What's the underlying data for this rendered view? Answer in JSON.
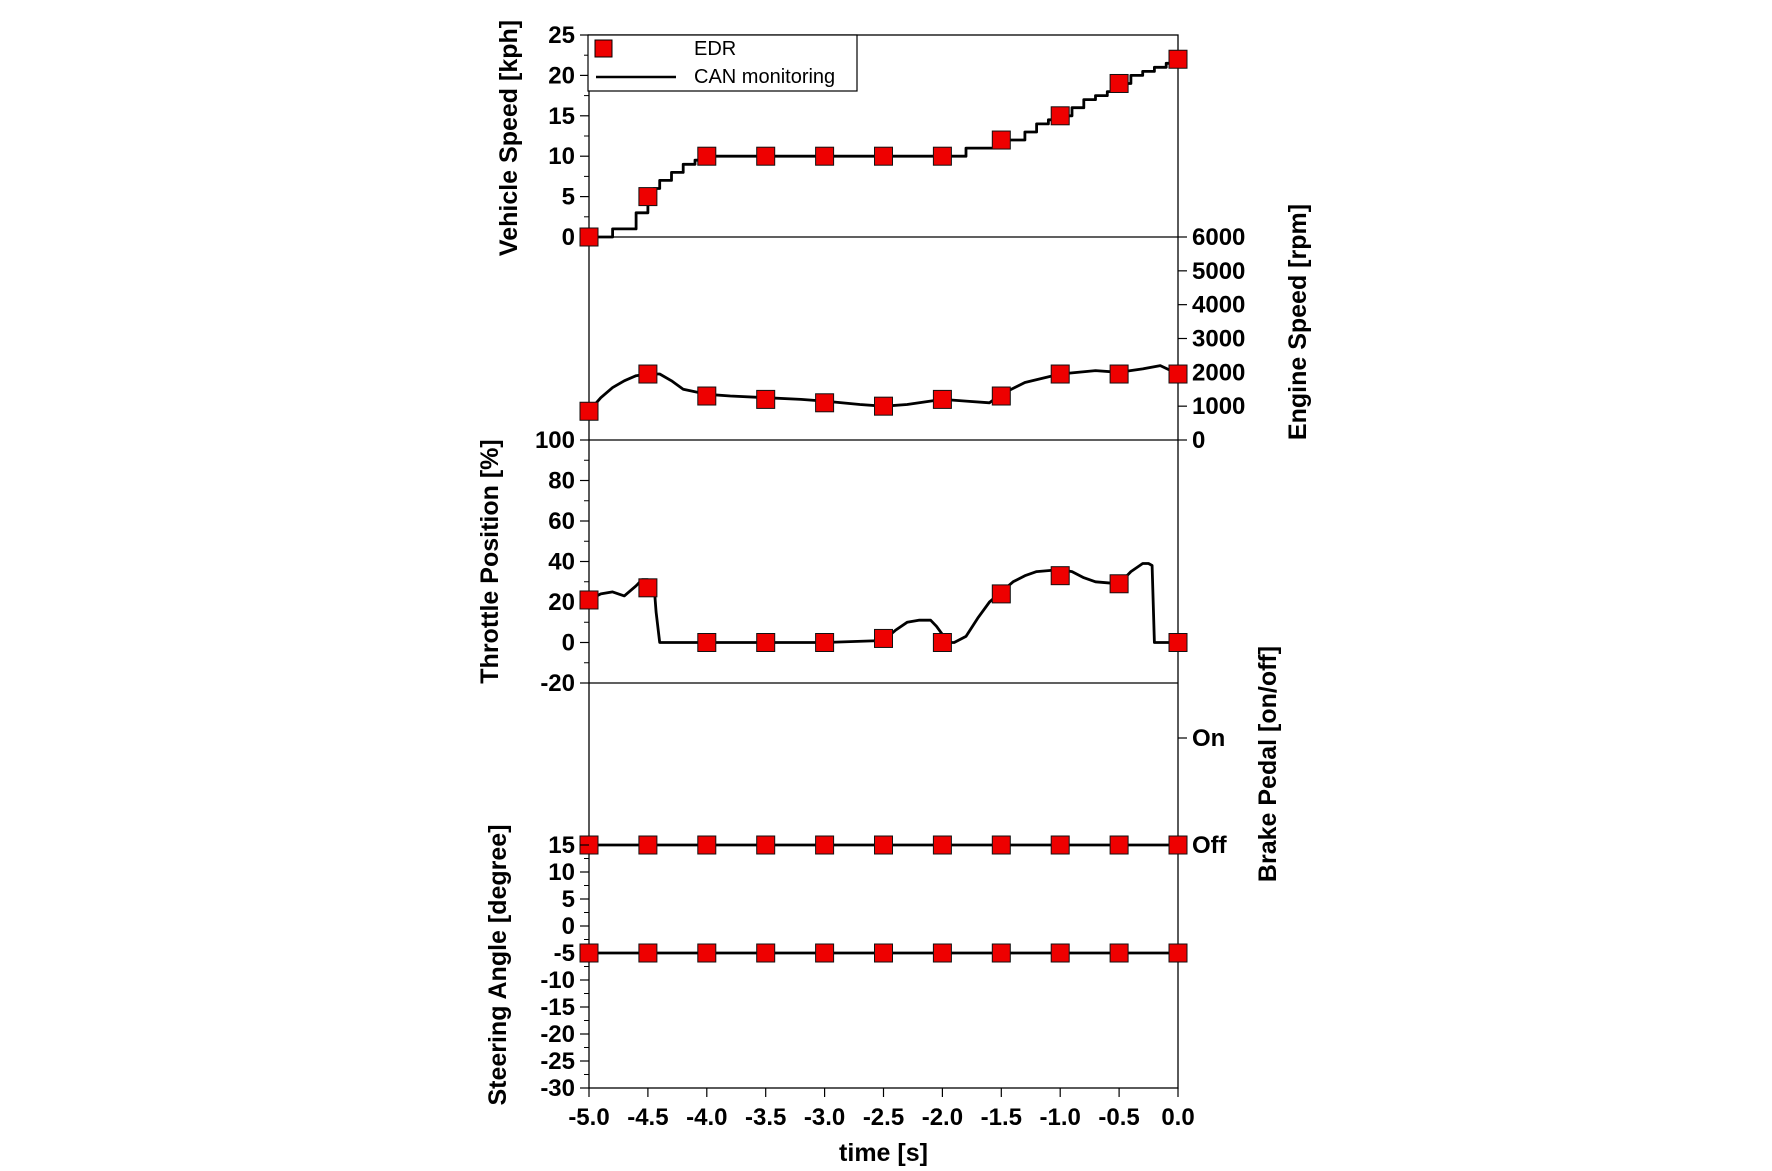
{
  "chart_data": [
    {
      "type": "line",
      "id": "vehicle_speed",
      "ylabel": "Vehicle Speed [kph]",
      "ylim": [
        0,
        25
      ],
      "yticks": [
        "0",
        "5",
        "10",
        "15",
        "20",
        "25"
      ],
      "y_axis_side": "left",
      "legend": {
        "placement": "top-left",
        "entries": [
          "EDR",
          "CAN monitoring"
        ]
      },
      "series": [
        {
          "name": "EDR",
          "marker": "square",
          "color": "#ee0000",
          "x": [
            -5.0,
            -4.5,
            -4.0,
            -3.5,
            -3.0,
            -2.5,
            -2.0,
            -1.5,
            -1.0,
            -0.5,
            0.0
          ],
          "y": [
            0,
            5,
            10,
            10,
            10,
            10,
            10,
            12,
            15,
            19,
            22
          ]
        },
        {
          "name": "CAN monitoring",
          "style": "step",
          "color": "#000000",
          "x": [
            -5.0,
            -4.8,
            -4.6,
            -4.5,
            -4.45,
            -4.4,
            -4.3,
            -4.2,
            -4.1,
            -4.0,
            -2.0,
            -1.8,
            -1.6,
            -1.5,
            -1.3,
            -1.2,
            -1.1,
            -1.0,
            -0.9,
            -0.8,
            -0.7,
            -0.6,
            -0.5,
            -0.4,
            -0.3,
            -0.2,
            -0.1,
            0.0
          ],
          "y": [
            0,
            1,
            3,
            5,
            6,
            7,
            8,
            9,
            9.5,
            10,
            10,
            11,
            11,
            12,
            13,
            14,
            14.5,
            15,
            16,
            17,
            17.5,
            18,
            19,
            20,
            20.5,
            21,
            21.5,
            22
          ]
        }
      ]
    },
    {
      "type": "line",
      "id": "engine_speed",
      "ylabel": "Engine Speed [rpm]",
      "ylim": [
        0,
        6000
      ],
      "yticks": [
        "0",
        "1000",
        "2000",
        "3000",
        "4000",
        "5000",
        "6000"
      ],
      "y_axis_side": "right",
      "series": [
        {
          "name": "EDR",
          "marker": "square",
          "color": "#ee0000",
          "x": [
            -5.0,
            -4.5,
            -4.0,
            -3.5,
            -3.0,
            -2.5,
            -2.0,
            -1.5,
            -1.0,
            -0.5,
            0.0
          ],
          "y": [
            850,
            1950,
            1300,
            1200,
            1100,
            1000,
            1200,
            1300,
            1950,
            1950,
            1950
          ]
        },
        {
          "name": "CAN monitoring",
          "color": "#000000",
          "x": [
            -5.0,
            -4.9,
            -4.8,
            -4.7,
            -4.6,
            -4.5,
            -4.4,
            -4.3,
            -4.2,
            -4.0,
            -3.8,
            -3.5,
            -3.2,
            -3.0,
            -2.7,
            -2.5,
            -2.3,
            -2.0,
            -1.8,
            -1.6,
            -1.5,
            -1.3,
            -1.0,
            -0.7,
            -0.5,
            -0.3,
            -0.15,
            0.0
          ],
          "y": [
            850,
            1250,
            1550,
            1750,
            1900,
            1950,
            1950,
            1750,
            1500,
            1350,
            1300,
            1250,
            1200,
            1150,
            1050,
            1000,
            1050,
            1200,
            1150,
            1100,
            1350,
            1700,
            1950,
            2050,
            2000,
            2100,
            2200,
            1950
          ]
        }
      ]
    },
    {
      "type": "line",
      "id": "throttle_position",
      "ylabel": "Throttle Position [%]",
      "ylim": [
        -20,
        100
      ],
      "yticks": [
        "-20",
        "0",
        "20",
        "40",
        "60",
        "80",
        "100"
      ],
      "y_axis_side": "left",
      "series": [
        {
          "name": "EDR",
          "marker": "square",
          "color": "#ee0000",
          "x": [
            -5.0,
            -4.5,
            -4.0,
            -3.5,
            -3.0,
            -2.5,
            -2.0,
            -1.5,
            -1.0,
            -0.5,
            0.0
          ],
          "y": [
            21,
            27,
            0,
            0,
            0,
            2,
            0,
            24,
            33,
            29,
            0
          ]
        },
        {
          "name": "CAN monitoring",
          "color": "#000000",
          "x": [
            -5.0,
            -4.9,
            -4.8,
            -4.7,
            -4.6,
            -4.55,
            -4.5,
            -4.45,
            -4.43,
            -4.4,
            -3.0,
            -2.5,
            -2.4,
            -2.3,
            -2.2,
            -2.1,
            -2.05,
            -2.0,
            -1.95,
            -1.9,
            -1.8,
            -1.7,
            -1.6,
            -1.5,
            -1.4,
            -1.3,
            -1.2,
            -1.0,
            -0.9,
            -0.8,
            -0.7,
            -0.5,
            -0.4,
            -0.3,
            -0.25,
            -0.22,
            -0.2,
            0.0
          ],
          "y": [
            21,
            24,
            25,
            23,
            28,
            31,
            31,
            30,
            15,
            0,
            0,
            1,
            6,
            10,
            11,
            11,
            8,
            4,
            0,
            0,
            3,
            12,
            20,
            25,
            30,
            33,
            35,
            36,
            35,
            32,
            30,
            29,
            35,
            39,
            39,
            38,
            0,
            0
          ]
        }
      ]
    },
    {
      "type": "line",
      "id": "brake_pedal",
      "ylabel": "Brake Pedal [on/off]",
      "ylim": [
        0,
        1
      ],
      "yticks": [
        "Off",
        "On"
      ],
      "y_axis_side": "right",
      "series": [
        {
          "name": "EDR",
          "marker": "square",
          "color": "#ee0000",
          "x": [
            -5.0,
            -4.5,
            -4.0,
            -3.5,
            -3.0,
            -2.5,
            -2.0,
            -1.5,
            -1.0,
            -0.5,
            0.0
          ],
          "y": [
            0,
            0,
            0,
            0,
            0,
            0,
            0,
            0,
            0,
            0,
            0
          ]
        },
        {
          "name": "CAN monitoring",
          "color": "#000000",
          "x": [
            -5.0,
            0.0
          ],
          "y": [
            0,
            0
          ]
        }
      ]
    },
    {
      "type": "line",
      "id": "steering_angle",
      "ylabel": "Steering Angle [degree]",
      "xlabel": "time [s]",
      "ylim": [
        -30,
        15
      ],
      "yticks": [
        "-30",
        "-25",
        "-20",
        "-15",
        "-10",
        "-5",
        "0",
        "5",
        "10",
        "15"
      ],
      "xlim": [
        -5.0,
        0.0
      ],
      "xticks": [
        "-5.0",
        "-4.5",
        "-4.0",
        "-3.5",
        "-3.0",
        "-2.5",
        "-2.0",
        "-1.5",
        "-1.0",
        "-0.5",
        "0.0"
      ],
      "y_axis_side": "left",
      "series": [
        {
          "name": "EDR",
          "marker": "square",
          "color": "#ee0000",
          "x": [
            -5.0,
            -4.5,
            -4.0,
            -3.5,
            -3.0,
            -2.5,
            -2.0,
            -1.5,
            -1.0,
            -0.5,
            0.0
          ],
          "y": [
            -5,
            -5,
            -5,
            -5,
            -5,
            -5,
            -5,
            -5,
            -5,
            -5,
            -5
          ]
        },
        {
          "name": "CAN monitoring",
          "color": "#000000",
          "x": [
            -5.0,
            0.0
          ],
          "y": [
            -5,
            -5
          ]
        }
      ]
    }
  ]
}
